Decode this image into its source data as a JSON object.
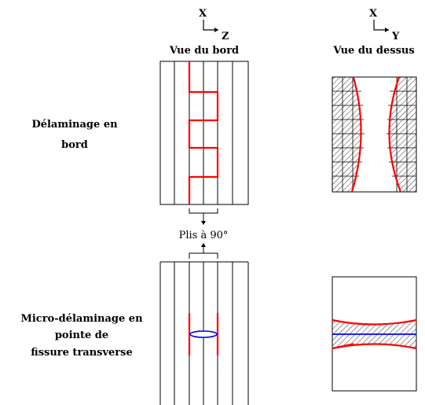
{
  "left_axes": {
    "vertical": "X",
    "horizontal": "Z"
  },
  "right_axes": {
    "vertical": "X",
    "horizontal": "Y"
  },
  "column_titles": {
    "left": "Vue du bord",
    "right": "Vue du dessus"
  },
  "rows": [
    {
      "label_lines": [
        "Délaminage en",
        "bord"
      ]
    },
    {
      "label_lines": [
        "Micro-délaminage en",
        "pointe de",
        "fissure transverse"
      ]
    }
  ],
  "center_label": "Plis à 90°",
  "colors": {
    "crack": "#ff0000",
    "delamination_core": "#0000ff",
    "line": "#000000",
    "hatch": "#000000"
  }
}
